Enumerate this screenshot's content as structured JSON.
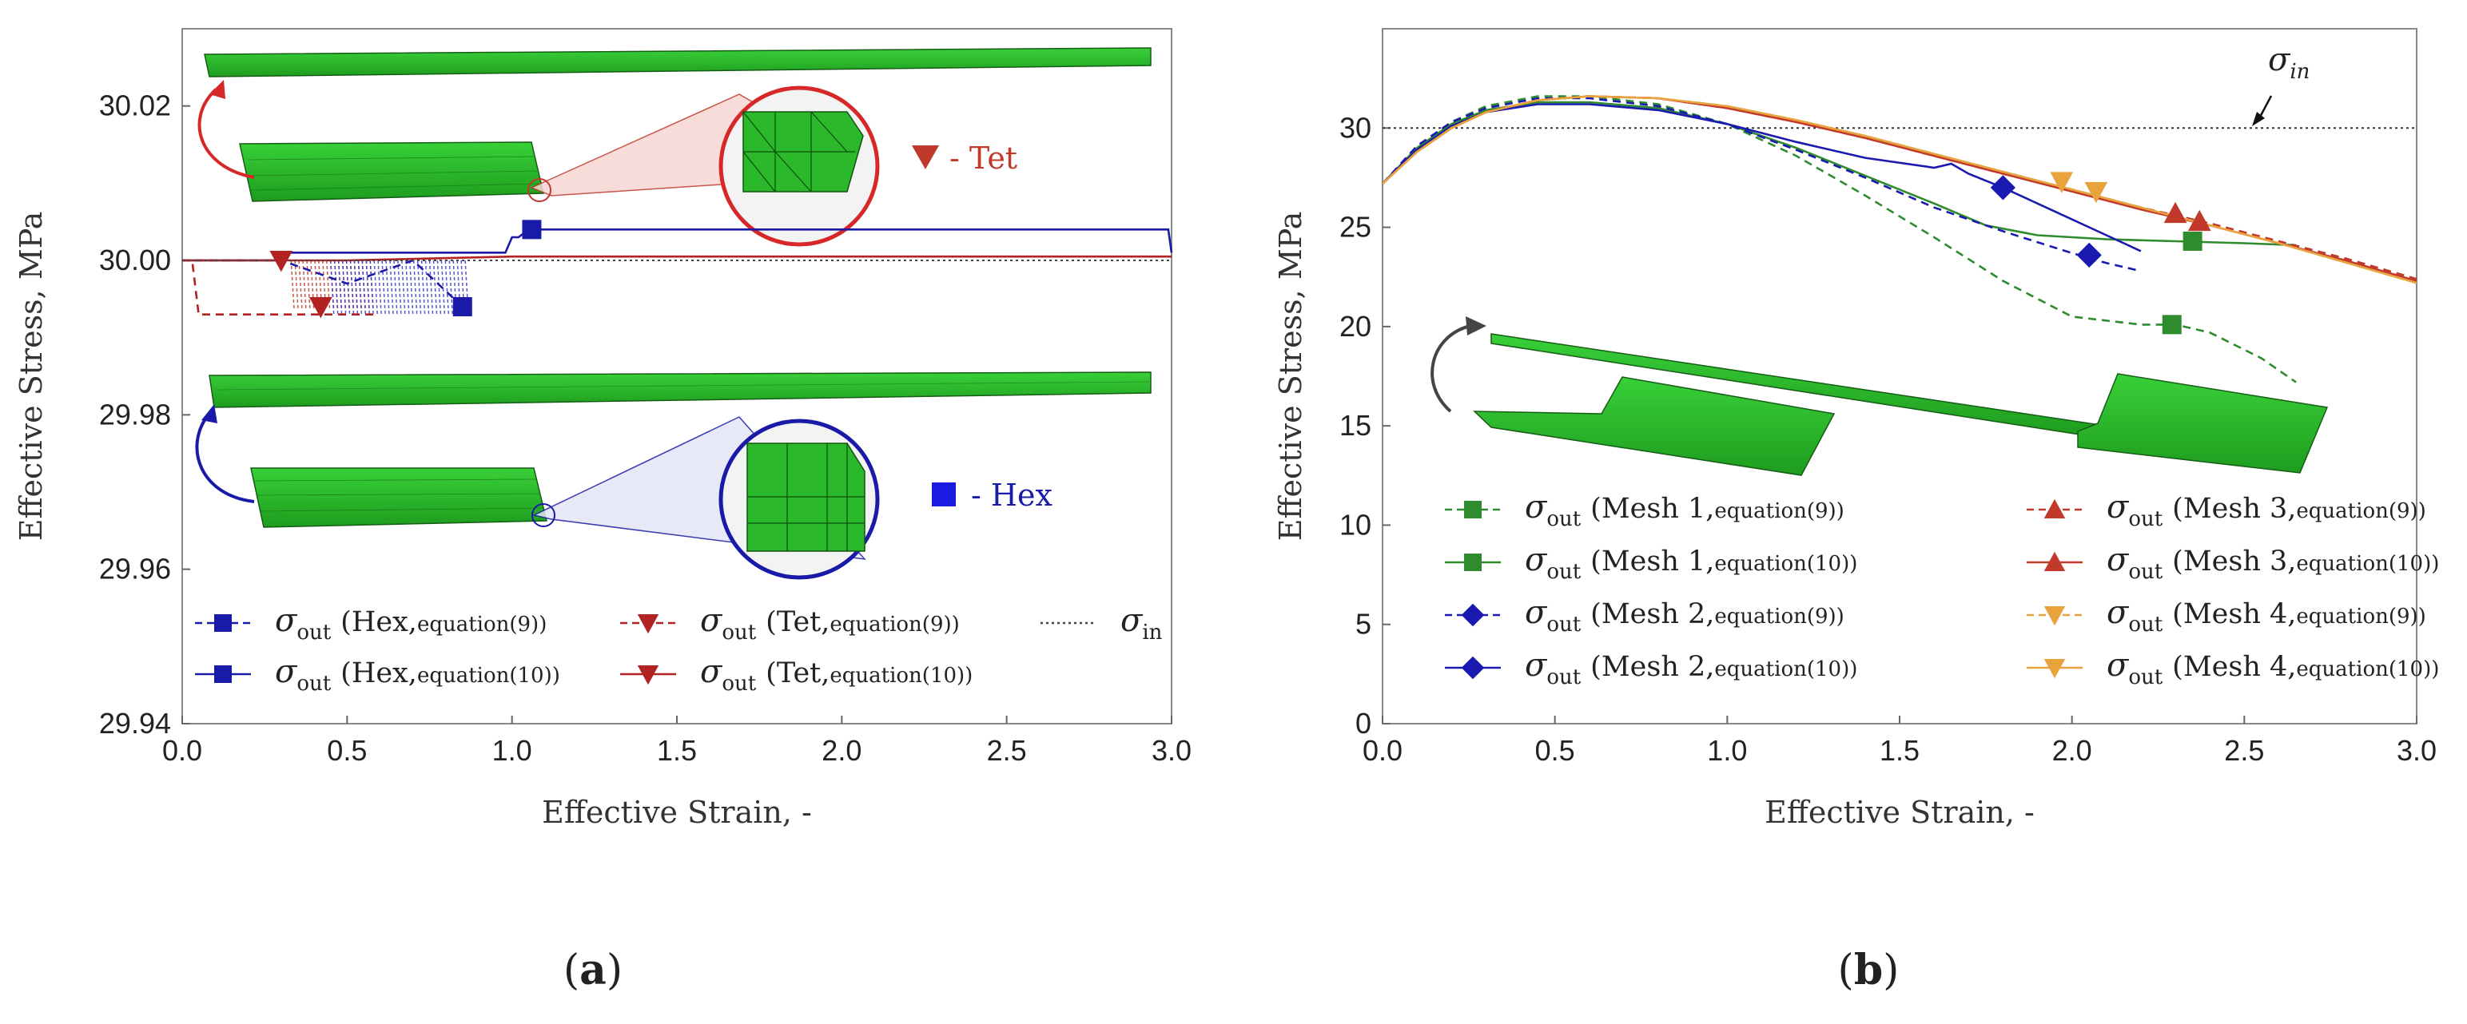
{
  "chart_data": [
    {
      "panel": "a",
      "type": "line",
      "xlabel": "Effective Strain, -",
      "ylabel": "Effective Stress, MPa",
      "xlim": [
        0.0,
        3.0
      ],
      "ylim": [
        29.94,
        30.03
      ],
      "xticks": [
        "0.0",
        "0.5",
        "1.0",
        "1.5",
        "2.0",
        "2.5",
        "3.0"
      ],
      "yticks": [
        "29.94",
        "29.96",
        "29.98",
        "30.00",
        "30.02"
      ],
      "ytick_values": [
        29.94,
        29.96,
        29.98,
        30.0,
        30.02
      ],
      "xtick_values": [
        0,
        0.5,
        1,
        1.5,
        2,
        2.5,
        3
      ],
      "annotations": {
        "tet": "- Tet",
        "hex": "- Hex"
      },
      "series": [
        {
          "name": "Hex, equation(9)",
          "color": "#1a1aa8",
          "dash": true,
          "marker": "square",
          "x": [
            0.0,
            0.02,
            0.05,
            0.12,
            0.2,
            0.3,
            0.5,
            0.7,
            0.85
          ],
          "y": [
            30.0,
            30.0,
            30.0,
            30.0,
            30.0,
            30.0,
            29.997,
            30.0,
            29.994
          ],
          "markers": [
            [
              0.85,
              29.994
            ]
          ]
        },
        {
          "name": "Hex, equation(10)",
          "color": "#1a1aa8",
          "dash": false,
          "marker": "square",
          "x": [
            0.0,
            0.3,
            0.32,
            0.98,
            1.0,
            1.02,
            1.05,
            2.5,
            2.99,
            3.0
          ],
          "y": [
            30.0,
            30.0,
            30.001,
            30.001,
            30.003,
            30.003,
            30.004,
            30.004,
            30.004,
            30.001
          ],
          "markers": [
            [
              1.06,
              30.004
            ]
          ]
        },
        {
          "name": "Tet, equation(9)",
          "color": "#b22222",
          "dash": true,
          "marker": "triangle-down",
          "x": [
            0.0,
            0.03,
            0.05,
            0.1,
            0.3,
            0.35,
            0.5,
            0.58
          ],
          "y": [
            30.0,
            30.0,
            29.993,
            29.993,
            29.993,
            29.993,
            29.993,
            29.993
          ],
          "markers": [
            [
              0.42,
              29.994
            ]
          ]
        },
        {
          "name": "Tet, equation(10)",
          "color": "#b22222",
          "dash": false,
          "marker": "triangle-down",
          "x": [
            0.0,
            0.3,
            0.5,
            1.0,
            2.0,
            3.0
          ],
          "y": [
            30.0,
            30.0,
            30.0,
            30.0005,
            30.0005,
            30.0005
          ],
          "markers": [
            [
              0.3,
              30.0
            ]
          ]
        },
        {
          "name": "sigma_in",
          "color": "#444444",
          "dash": "dot",
          "marker": "none",
          "x": [
            0.0,
            3.0
          ],
          "y": [
            30.0,
            30.0
          ],
          "markers": []
        }
      ],
      "legend": [
        {
          "sigma": "σ",
          "sub": "out",
          "text": "(Hex,",
          "eq": "equation(9))",
          "color": "#1a1aa8",
          "dash": true,
          "marker": "square"
        },
        {
          "sigma": "σ",
          "sub": "out",
          "text": "(Tet,",
          "eq": "equation(9))",
          "color": "#b22222",
          "dash": true,
          "marker": "triangle-down"
        },
        {
          "sigma": "σ",
          "sub": "in",
          "text": "",
          "eq": "",
          "color": "#444444",
          "dash": "dot",
          "marker": "none"
        },
        {
          "sigma": "σ",
          "sub": "out",
          "text": "(Hex,",
          "eq": "equation(10))",
          "color": "#1a1aa8",
          "dash": false,
          "marker": "square"
        },
        {
          "sigma": "σ",
          "sub": "out",
          "text": "(Tet,",
          "eq": "equation(10))",
          "color": "#b22222",
          "dash": false,
          "marker": "triangle-down"
        }
      ]
    },
    {
      "panel": "b",
      "type": "line",
      "xlabel": "Effective Strain, -",
      "ylabel": "Effective Stress, MPa",
      "xlim": [
        0.0,
        3.0
      ],
      "ylim": [
        0,
        35
      ],
      "xticks": [
        "0.0",
        "0.5",
        "1.0",
        "1.5",
        "2.0",
        "2.5",
        "3.0"
      ],
      "yticks": [
        "0",
        "5",
        "10",
        "15",
        "20",
        "25",
        "30"
      ],
      "ytick_values": [
        0,
        5,
        10,
        15,
        20,
        25,
        30
      ],
      "xtick_values": [
        0,
        0.5,
        1,
        1.5,
        2,
        2.5,
        3
      ],
      "sigma_in_label": {
        "sigma": "σ",
        "sub": "in"
      },
      "sigma_in_value": 30,
      "series": [
        {
          "name": "Mesh 1, equation(9)",
          "color": "#2e8b2e",
          "dash": true,
          "marker": "square",
          "x": [
            0.0,
            0.1,
            0.2,
            0.3,
            0.45,
            0.6,
            0.8,
            1.0,
            1.2,
            1.4,
            1.6,
            1.8,
            2.0,
            2.2,
            2.3,
            2.4,
            2.55,
            2.65
          ],
          "y": [
            27.2,
            29.0,
            30.3,
            31.1,
            31.6,
            31.6,
            31.2,
            30.2,
            28.6,
            26.6,
            24.5,
            22.3,
            20.5,
            20.1,
            20.1,
            19.7,
            18.4,
            17.2
          ],
          "markers": [
            [
              2.29,
              20.1
            ]
          ]
        },
        {
          "name": "Mesh 1, equation(10)",
          "color": "#2e8b2e",
          "dash": false,
          "marker": "square",
          "x": [
            0.0,
            0.1,
            0.2,
            0.3,
            0.45,
            0.6,
            0.8,
            1.0,
            1.2,
            1.4,
            1.6,
            1.75,
            1.9,
            2.1,
            2.3,
            2.5,
            2.65
          ],
          "y": [
            27.2,
            29.0,
            30.2,
            30.9,
            31.3,
            31.3,
            31.0,
            30.2,
            29.0,
            27.6,
            26.2,
            25.1,
            24.6,
            24.4,
            24.3,
            24.2,
            24.1
          ],
          "markers": [
            [
              2.35,
              24.3
            ]
          ]
        },
        {
          "name": "Mesh 2, equation(9)",
          "color": "#1a1ab0",
          "dash": true,
          "marker": "diamond",
          "x": [
            0.0,
            0.1,
            0.2,
            0.3,
            0.45,
            0.6,
            0.8,
            1.0,
            1.2,
            1.4,
            1.6,
            1.8,
            2.0,
            2.1,
            2.2
          ],
          "y": [
            27.2,
            29.1,
            30.3,
            31.0,
            31.5,
            31.5,
            31.1,
            30.2,
            28.9,
            27.5,
            26.0,
            24.8,
            23.7,
            23.2,
            22.8
          ],
          "markers": [
            [
              2.05,
              23.6
            ]
          ]
        },
        {
          "name": "Mesh 2, equation(10)",
          "color": "#1a1ab0",
          "dash": false,
          "marker": "diamond",
          "x": [
            0.0,
            0.1,
            0.2,
            0.3,
            0.45,
            0.6,
            0.8,
            1.0,
            1.2,
            1.4,
            1.6,
            1.65,
            1.7,
            1.8,
            1.95,
            2.1,
            2.2
          ],
          "y": [
            27.2,
            28.9,
            30.1,
            30.8,
            31.2,
            31.2,
            30.9,
            30.2,
            29.3,
            28.5,
            28.0,
            28.2,
            27.7,
            27.0,
            25.8,
            24.6,
            23.8
          ],
          "markers": [
            [
              1.8,
              27.0
            ]
          ]
        },
        {
          "name": "Mesh 3, equation(9)",
          "color": "#c0392b",
          "dash": true,
          "marker": "triangle-up",
          "x": [
            0.0,
            0.1,
            0.2,
            0.3,
            0.45,
            0.6,
            0.8,
            1.0,
            1.2,
            1.4,
            1.6,
            1.8,
            2.0,
            2.2,
            2.4,
            2.6,
            2.8,
            3.0
          ],
          "y": [
            27.2,
            28.8,
            30.0,
            30.8,
            31.4,
            31.6,
            31.5,
            31.0,
            30.3,
            29.5,
            28.6,
            27.7,
            26.9,
            26.0,
            25.2,
            24.3,
            23.4,
            22.4
          ],
          "markers": [
            [
              2.3,
              25.7
            ]
          ]
        },
        {
          "name": "Mesh 3, equation(10)",
          "color": "#c0392b",
          "dash": false,
          "marker": "triangle-up",
          "x": [
            0.0,
            0.1,
            0.2,
            0.3,
            0.45,
            0.6,
            0.8,
            1.0,
            1.2,
            1.4,
            1.6,
            1.8,
            2.0,
            2.2,
            2.4,
            2.6,
            2.8,
            3.0
          ],
          "y": [
            27.2,
            28.8,
            30.0,
            30.8,
            31.4,
            31.6,
            31.5,
            31.0,
            30.3,
            29.5,
            28.6,
            27.7,
            26.8,
            25.9,
            25.1,
            24.2,
            23.3,
            22.3
          ],
          "markers": [
            [
              2.37,
              25.3
            ]
          ]
        },
        {
          "name": "Mesh 4, equation(9)",
          "color": "#e8a33d",
          "dash": true,
          "marker": "triangle-down",
          "x": [
            0.0,
            0.1,
            0.2,
            0.3,
            0.45,
            0.6,
            0.8,
            1.0,
            1.2,
            1.4,
            1.6,
            1.8,
            2.0,
            2.2,
            2.4,
            2.6,
            2.8,
            3.0
          ],
          "y": [
            27.2,
            28.8,
            30.0,
            30.8,
            31.4,
            31.6,
            31.5,
            31.1,
            30.4,
            29.6,
            28.7,
            27.8,
            26.9,
            26.0,
            25.1,
            24.2,
            23.2,
            22.2
          ],
          "markers": [
            [
              1.97,
              27.3
            ]
          ]
        },
        {
          "name": "Mesh 4, equation(10)",
          "color": "#e8a33d",
          "dash": false,
          "marker": "triangle-down",
          "x": [
            0.0,
            0.1,
            0.2,
            0.3,
            0.45,
            0.6,
            0.8,
            1.0,
            1.2,
            1.4,
            1.6,
            1.8,
            2.0,
            2.2,
            2.4,
            2.6,
            2.8,
            3.0
          ],
          "y": [
            27.2,
            28.8,
            30.0,
            30.8,
            31.4,
            31.6,
            31.5,
            31.1,
            30.4,
            29.6,
            28.7,
            27.8,
            26.9,
            26.0,
            25.1,
            24.2,
            23.2,
            22.2
          ],
          "markers": [
            [
              2.07,
              26.8
            ]
          ]
        }
      ],
      "legend": [
        {
          "sigma": "σ",
          "sub": "out",
          "text": "(Mesh 1,",
          "eq": "equation(9))",
          "color": "#2e8b2e",
          "dash": true,
          "marker": "square"
        },
        {
          "sigma": "σ",
          "sub": "out",
          "text": "(Mesh 3,",
          "eq": "equation(9))",
          "color": "#c0392b",
          "dash": true,
          "marker": "triangle-up"
        },
        {
          "sigma": "σ",
          "sub": "out",
          "text": "(Mesh 1,",
          "eq": "equation(10))",
          "color": "#2e8b2e",
          "dash": false,
          "marker": "square"
        },
        {
          "sigma": "σ",
          "sub": "out",
          "text": "(Mesh 3,",
          "eq": "equation(10))",
          "color": "#c0392b",
          "dash": false,
          "marker": "triangle-up"
        },
        {
          "sigma": "σ",
          "sub": "out",
          "text": "(Mesh 2,",
          "eq": "equation(9))",
          "color": "#1a1ab0",
          "dash": true,
          "marker": "diamond"
        },
        {
          "sigma": "σ",
          "sub": "out",
          "text": "(Mesh 4,",
          "eq": "equation(9))",
          "color": "#e8a33d",
          "dash": true,
          "marker": "triangle-down"
        },
        {
          "sigma": "σ",
          "sub": "out",
          "text": "(Mesh 2,",
          "eq": "equation(10))",
          "color": "#1a1ab0",
          "dash": false,
          "marker": "diamond"
        },
        {
          "sigma": "σ",
          "sub": "out",
          "text": "(Mesh 4,",
          "eq": "equation(10))",
          "color": "#e8a33d",
          "dash": false,
          "marker": "triangle-down"
        }
      ]
    }
  ],
  "panel_labels": {
    "a_open": "(",
    "a": "a",
    "a_close": ")",
    "b_open": "(",
    "b": "b",
    "b_close": ")"
  }
}
